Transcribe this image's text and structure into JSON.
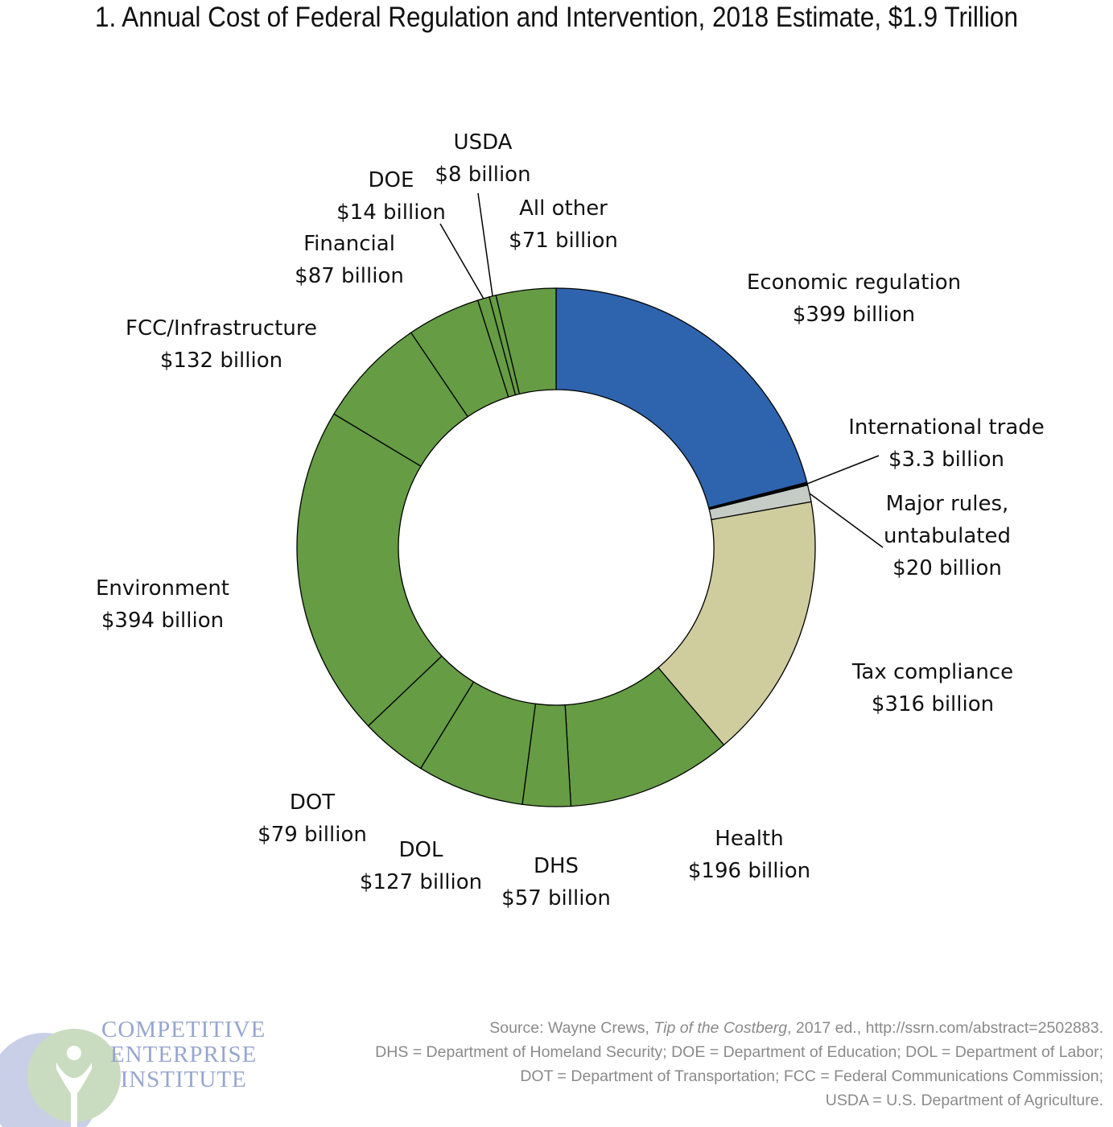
{
  "chart_data": {
    "type": "pie",
    "title": "1. Annual Cost of Federal Regulation and Intervention, 2018 Estimate, $1.9 Trillion",
    "slices": [
      {
        "label": "Economic regulation",
        "value_text": "$399 billion",
        "value": 399,
        "color": "#2e64ae"
      },
      {
        "label": "International trade",
        "value_text": "$3.3 billion",
        "value": 3.3,
        "color": "#000000"
      },
      {
        "label": "Major rules, untabulated",
        "value_text": "$20 billion",
        "value": 20,
        "color": "#c5ccc6"
      },
      {
        "label": "Tax compliance",
        "value_text": "$316 billion",
        "value": 316,
        "color": "#cfcc9e"
      },
      {
        "label": "Health",
        "value_text": "$196 billion",
        "value": 196,
        "color": "#659c44"
      },
      {
        "label": "DHS",
        "value_text": "$57 billion",
        "value": 57,
        "color": "#659c44"
      },
      {
        "label": "DOL",
        "value_text": "$127 billion",
        "value": 127,
        "color": "#659c44"
      },
      {
        "label": "DOT",
        "value_text": "$79 billion",
        "value": 79,
        "color": "#659c44"
      },
      {
        "label": "Environment",
        "value_text": "$394 billion",
        "value": 394,
        "color": "#659c44"
      },
      {
        "label": "FCC/Infrastructure",
        "value_text": "$132 billion",
        "value": 132,
        "color": "#659c44"
      },
      {
        "label": "Financial",
        "value_text": "$87 billion",
        "value": 87,
        "color": "#659c44"
      },
      {
        "label": "DOE",
        "value_text": "$14 billion",
        "value": 14,
        "color": "#659c44"
      },
      {
        "label": "USDA",
        "value_text": "$8 billion",
        "value": 8,
        "color": "#659c44"
      },
      {
        "label": "All other",
        "value_text": "$71 billion",
        "value": 71,
        "color": "#659c44"
      }
    ]
  },
  "label_lines": {
    "major_rules": [
      "Major rules,",
      "untabulated",
      "$20 billion"
    ]
  },
  "source": {
    "prefix": "Source:  Wayne Crews, ",
    "book": "Tip of the Costberg",
    "suffix": ", 2017 ed., http://ssrn.com/abstract=2502883.",
    "notes": [
      "DHS = Department of Homeland Security; DOE = Department of Education; DOL = Department of Labor;",
      "DOT = Department of Transportation; FCC = Federal Communications Commission;",
      "USDA = U.S. Department of Agriculture."
    ]
  },
  "logo": {
    "lines": [
      "COMPETITIVE",
      "ENTERPRISE",
      "INSTITUTE"
    ],
    "colors": {
      "blue": "#c9cfe6",
      "green": "#c9dcc0"
    }
  }
}
